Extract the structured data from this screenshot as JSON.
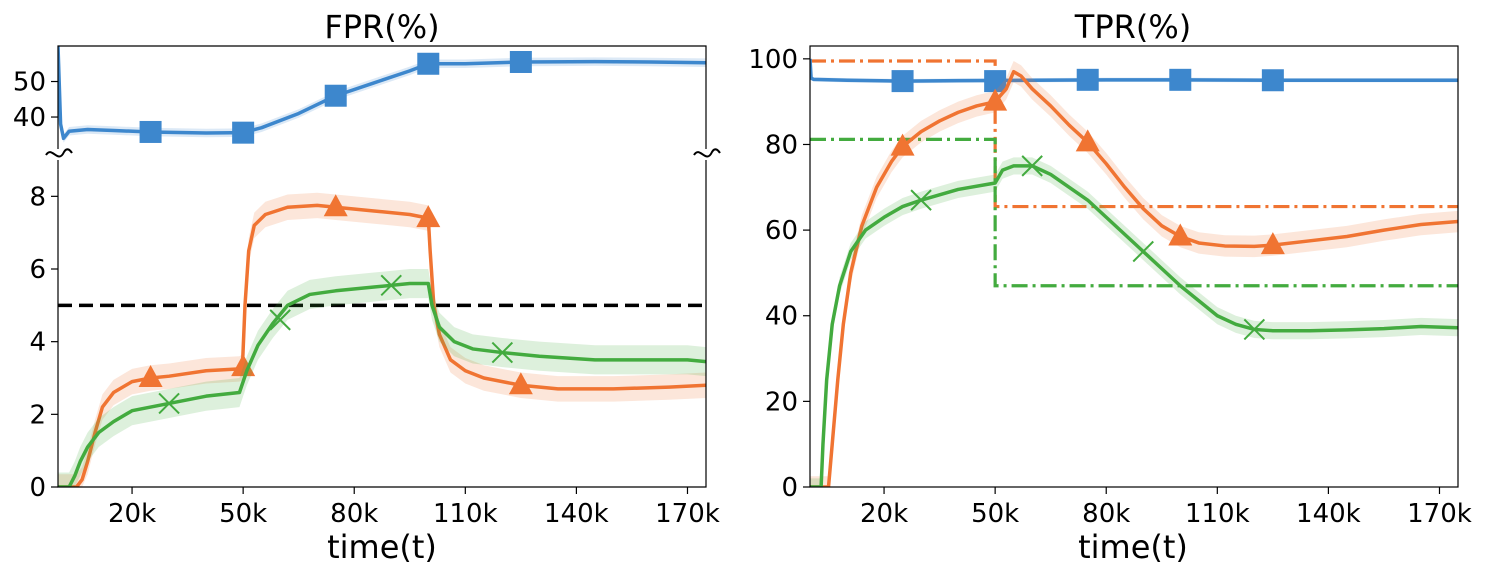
{
  "colors": {
    "blue": "#3d87cd",
    "orange": "#f07432",
    "green": "#43ab3f",
    "threshold": "#000000"
  },
  "chart_data": [
    {
      "type": "line",
      "title": "FPR(%)",
      "xlabel": "time(t)",
      "ylabel": "",
      "xlim": [
        0,
        175000
      ],
      "xticks": [
        20000,
        50000,
        80000,
        110000,
        140000,
        170000
      ],
      "xtick_labels": [
        "20k",
        "50k",
        "80k",
        "110k",
        "140k",
        "170k"
      ],
      "broken_y_axis": true,
      "upper_panel": {
        "ylim": [
          31,
          60
        ],
        "yticks": [
          40,
          50
        ],
        "ytick_labels": [
          "40",
          "50"
        ]
      },
      "lower_panel": {
        "ylim": [
          0,
          9
        ],
        "yticks": [
          0,
          2,
          4,
          6,
          8
        ],
        "ytick_labels": [
          "0",
          "2",
          "4",
          "6",
          "8"
        ]
      },
      "threshold_line": {
        "y": 5,
        "style": "dashed",
        "color": "#000000"
      },
      "series": [
        {
          "color": "#3d87cd",
          "marker": "square",
          "panel": "upper",
          "points": [
            [
              0,
              60
            ],
            [
              700,
              38
            ],
            [
              1500,
              34
            ],
            [
              3000,
              36
            ],
            [
              8000,
              36.5
            ],
            [
              15000,
              36.2
            ],
            [
              25000,
              35.8
            ],
            [
              40000,
              35.5
            ],
            [
              50000,
              35.6
            ],
            [
              55000,
              37
            ],
            [
              65000,
              41
            ],
            [
              75000,
              46
            ],
            [
              85000,
              49.5
            ],
            [
              95000,
              53
            ],
            [
              100000,
              55
            ],
            [
              110000,
              55
            ],
            [
              125000,
              55.5
            ],
            [
              145000,
              55.6
            ],
            [
              160000,
              55.5
            ],
            [
              175000,
              55.3
            ]
          ],
          "band": 1.2,
          "markers": [
            [
              25000,
              35.8
            ],
            [
              50000,
              35.6
            ],
            [
              75000,
              46
            ],
            [
              100000,
              55
            ],
            [
              125000,
              55.5
            ]
          ]
        },
        {
          "color": "#f07432",
          "marker": "triangle",
          "panel": "lower",
          "points": [
            [
              0,
              0
            ],
            [
              5000,
              0
            ],
            [
              6500,
              0.2
            ],
            [
              8000,
              0.7
            ],
            [
              10000,
              1.5
            ],
            [
              12000,
              2.2
            ],
            [
              15000,
              2.6
            ],
            [
              20000,
              2.9
            ],
            [
              25000,
              3.0
            ],
            [
              30000,
              3.05
            ],
            [
              40000,
              3.2
            ],
            [
              49000,
              3.25
            ],
            [
              49800,
              3.3
            ],
            [
              50500,
              5
            ],
            [
              51500,
              6.5
            ],
            [
              53000,
              7.2
            ],
            [
              56000,
              7.5
            ],
            [
              62000,
              7.7
            ],
            [
              70000,
              7.75
            ],
            [
              75000,
              7.7
            ],
            [
              85000,
              7.6
            ],
            [
              95000,
              7.5
            ],
            [
              100000,
              7.4
            ],
            [
              100500,
              6.5
            ],
            [
              101500,
              5
            ],
            [
              103000,
              4.2
            ],
            [
              106000,
              3.5
            ],
            [
              110000,
              3.2
            ],
            [
              115000,
              3.0
            ],
            [
              125000,
              2.8
            ],
            [
              135000,
              2.7
            ],
            [
              150000,
              2.7
            ],
            [
              165000,
              2.75
            ],
            [
              175000,
              2.8
            ]
          ],
          "band": 0.35,
          "markers": [
            [
              25000,
              3.0
            ],
            [
              50000,
              3.3
            ],
            [
              75000,
              7.7
            ],
            [
              100000,
              7.4
            ],
            [
              125000,
              2.8
            ]
          ]
        },
        {
          "color": "#43ab3f",
          "marker": "x",
          "panel": "lower",
          "points": [
            [
              0,
              0
            ],
            [
              3000,
              0
            ],
            [
              4500,
              0.3
            ],
            [
              6000,
              0.7
            ],
            [
              8000,
              1.1
            ],
            [
              11000,
              1.5
            ],
            [
              15000,
              1.8
            ],
            [
              20000,
              2.1
            ],
            [
              30000,
              2.3
            ],
            [
              40000,
              2.5
            ],
            [
              49000,
              2.6
            ],
            [
              51000,
              3.2
            ],
            [
              54000,
              3.9
            ],
            [
              58000,
              4.5
            ],
            [
              62000,
              5.0
            ],
            [
              68000,
              5.3
            ],
            [
              75000,
              5.4
            ],
            [
              85000,
              5.5
            ],
            [
              95000,
              5.6
            ],
            [
              100000,
              5.6
            ],
            [
              101000,
              5.0
            ],
            [
              103000,
              4.4
            ],
            [
              107000,
              4.0
            ],
            [
              112000,
              3.8
            ],
            [
              120000,
              3.7
            ],
            [
              130000,
              3.6
            ],
            [
              145000,
              3.5
            ],
            [
              160000,
              3.5
            ],
            [
              170000,
              3.5
            ],
            [
              175000,
              3.45
            ]
          ],
          "band": 0.4,
          "markers": [
            [
              30000,
              2.3
            ],
            [
              60000,
              4.6
            ],
            [
              90000,
              5.55
            ],
            [
              120000,
              3.7
            ]
          ]
        }
      ]
    },
    {
      "type": "line",
      "title": "TPR(%)",
      "xlabel": "time(t)",
      "ylabel": "",
      "xlim": [
        0,
        175000
      ],
      "ylim": [
        0,
        103
      ],
      "xticks": [
        20000,
        50000,
        80000,
        110000,
        140000,
        170000
      ],
      "xtick_labels": [
        "20k",
        "50k",
        "80k",
        "110k",
        "140k",
        "170k"
      ],
      "yticks": [
        0,
        20,
        40,
        60,
        80,
        100
      ],
      "ytick_labels": [
        "0",
        "20",
        "40",
        "60",
        "80",
        "100"
      ],
      "reference_lines": [
        {
          "color": "#f07432",
          "style": "dashdot",
          "points": [
            [
              0,
              99.5
            ],
            [
              50000,
              99.5
            ],
            [
              50000,
              65.5
            ],
            [
              175000,
              65.5
            ]
          ]
        },
        {
          "color": "#43ab3f",
          "style": "dashdot",
          "points": [
            [
              0,
              81.2
            ],
            [
              50000,
              81.2
            ],
            [
              50000,
              47
            ],
            [
              175000,
              47
            ]
          ]
        }
      ],
      "series": [
        {
          "color": "#3d87cd",
          "marker": "square",
          "points": [
            [
              0,
              100
            ],
            [
              300,
              95.5
            ],
            [
              1000,
              95.2
            ],
            [
              10000,
              95
            ],
            [
              25000,
              94.8
            ],
            [
              40000,
              94.9
            ],
            [
              60000,
              95
            ],
            [
              80000,
              95.1
            ],
            [
              100000,
              95.1
            ],
            [
              125000,
              95
            ],
            [
              150000,
              95
            ],
            [
              175000,
              95
            ]
          ],
          "band": 0.5,
          "markers": [
            [
              25000,
              94.8
            ],
            [
              50000,
              94.8
            ],
            [
              75000,
              95.1
            ],
            [
              100000,
              95.1
            ],
            [
              125000,
              95.0
            ]
          ]
        },
        {
          "color": "#f07432",
          "marker": "triangle",
          "points": [
            [
              0,
              0
            ],
            [
              5000,
              0
            ],
            [
              6000,
              10
            ],
            [
              7500,
              25
            ],
            [
              9000,
              38
            ],
            [
              11000,
              50
            ],
            [
              14000,
              61
            ],
            [
              18000,
              70
            ],
            [
              22000,
              76
            ],
            [
              25000,
              79.5
            ],
            [
              30000,
              83
            ],
            [
              35000,
              85.5
            ],
            [
              40000,
              87.5
            ],
            [
              45000,
              89
            ],
            [
              50000,
              90
            ],
            [
              53000,
              93
            ],
            [
              55000,
              97
            ],
            [
              57000,
              96
            ],
            [
              60000,
              93
            ],
            [
              65000,
              89
            ],
            [
              70000,
              84.5
            ],
            [
              75000,
              80.5
            ],
            [
              80000,
              75.5
            ],
            [
              85000,
              70
            ],
            [
              90000,
              65
            ],
            [
              95000,
              61
            ],
            [
              100000,
              58.5
            ],
            [
              105000,
              57
            ],
            [
              112000,
              56.3
            ],
            [
              120000,
              56.2
            ],
            [
              125000,
              56.5
            ],
            [
              135000,
              57.5
            ],
            [
              145000,
              58.5
            ],
            [
              155000,
              60
            ],
            [
              165000,
              61.3
            ],
            [
              175000,
              62
            ]
          ],
          "band": 2.5,
          "markers": [
            [
              25000,
              79.5
            ],
            [
              50000,
              90
            ],
            [
              75000,
              80.5
            ],
            [
              100000,
              58.5
            ],
            [
              125000,
              56.5
            ]
          ]
        },
        {
          "color": "#43ab3f",
          "marker": "x",
          "points": [
            [
              0,
              0
            ],
            [
              3000,
              0
            ],
            [
              3500,
              10
            ],
            [
              4500,
              25
            ],
            [
              6000,
              38
            ],
            [
              8000,
              47
            ],
            [
              11000,
              55
            ],
            [
              15000,
              60
            ],
            [
              20000,
              63
            ],
            [
              25000,
              65.5
            ],
            [
              30000,
              67
            ],
            [
              40000,
              69.5
            ],
            [
              50000,
              71
            ],
            [
              52000,
              74
            ],
            [
              55000,
              75
            ],
            [
              60000,
              75
            ],
            [
              65000,
              73
            ],
            [
              70000,
              70
            ],
            [
              75000,
              67
            ],
            [
              80000,
              63
            ],
            [
              85000,
              59
            ],
            [
              90000,
              55
            ],
            [
              95000,
              51
            ],
            [
              100000,
              47
            ],
            [
              105000,
              43.5
            ],
            [
              110000,
              40
            ],
            [
              115000,
              38
            ],
            [
              120000,
              36.8
            ],
            [
              125000,
              36.5
            ],
            [
              135000,
              36.5
            ],
            [
              145000,
              36.7
            ],
            [
              155000,
              37
            ],
            [
              165000,
              37.5
            ],
            [
              175000,
              37.2
            ]
          ],
          "band": 2.0,
          "markers": [
            [
              30000,
              67
            ],
            [
              60000,
              75
            ],
            [
              90000,
              55
            ],
            [
              120000,
              36.8
            ]
          ]
        }
      ]
    }
  ]
}
